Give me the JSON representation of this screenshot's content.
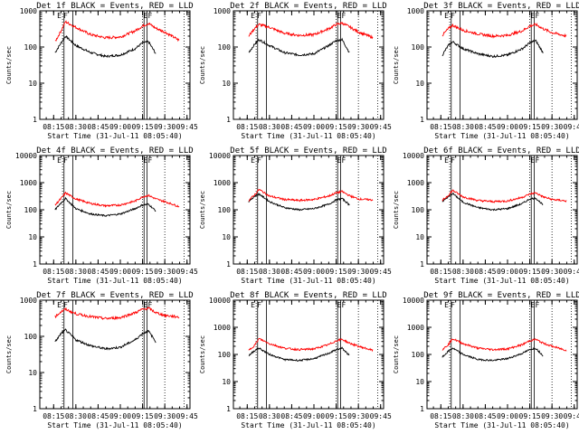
{
  "colors": {
    "events": "#000000",
    "lld": "#ff0000",
    "axes": "#000000",
    "background": "#ffffff"
  },
  "shared": {
    "xlabel": "Start Time (31-Jul-11 08:05:40)",
    "ylabel": "Counts/sec",
    "xtick_labels": [
      "08:15",
      "08:30",
      "08:45",
      "09:00",
      "09:15",
      "09:30",
      "09:45"
    ],
    "xlim": [
      "08:05:40",
      "09:47:00"
    ],
    "yscale": "log",
    "flags": [
      "E",
      "F"
    ]
  },
  "chart_data": [
    {
      "type": "line",
      "title": "Det 1f BLACK = Events, RED = LLD",
      "yticks": [
        "1",
        "10",
        "100",
        "1000"
      ],
      "ylim": [
        1,
        1000
      ],
      "series": [
        {
          "name": "Events",
          "color": "#000000",
          "x": [
            "08:16",
            "08:20",
            "08:23",
            "08:30",
            "08:40",
            "08:50",
            "09:00",
            "09:10",
            "09:15",
            "09:19",
            "09:24"
          ],
          "values": [
            70,
            130,
            200,
            110,
            70,
            55,
            60,
            90,
            130,
            140,
            65
          ]
        },
        {
          "name": "LLD",
          "color": "#ff0000",
          "x": [
            "08:16",
            "08:20",
            "08:23",
            "08:30",
            "08:40",
            "08:50",
            "09:00",
            "09:10",
            "09:15",
            "09:19",
            "09:24",
            "09:30",
            "09:40"
          ],
          "values": [
            140,
            280,
            500,
            350,
            220,
            180,
            190,
            280,
            380,
            450,
            330,
            260,
            150
          ]
        }
      ]
    },
    {
      "type": "line",
      "title": "Det 2f BLACK = Events, RED = LLD",
      "yticks": [
        "1",
        "10",
        "100",
        "1000"
      ],
      "ylim": [
        1,
        1000
      ],
      "series": [
        {
          "name": "Events",
          "color": "#000000",
          "x": [
            "08:16",
            "08:20",
            "08:23",
            "08:30",
            "08:40",
            "08:50",
            "09:00",
            "09:10",
            "09:15",
            "09:19",
            "09:24"
          ],
          "values": [
            70,
            120,
            160,
            110,
            70,
            60,
            65,
            110,
            150,
            160,
            70
          ]
        },
        {
          "name": "LLD",
          "color": "#ff0000",
          "x": [
            "08:16",
            "08:20",
            "08:23",
            "08:30",
            "08:40",
            "08:50",
            "09:00",
            "09:10",
            "09:15",
            "09:19",
            "09:24",
            "09:30",
            "09:40"
          ],
          "values": [
            200,
            330,
            420,
            350,
            240,
            210,
            220,
            320,
            420,
            460,
            360,
            260,
            180
          ]
        }
      ]
    },
    {
      "type": "line",
      "title": "Det 3f BLACK = Events, RED = LLD",
      "yticks": [
        "1",
        "10",
        "100",
        "1000"
      ],
      "ylim": [
        1,
        1000
      ],
      "series": [
        {
          "name": "Events",
          "color": "#000000",
          "x": [
            "08:16",
            "08:20",
            "08:23",
            "08:30",
            "08:40",
            "08:50",
            "09:00",
            "09:10",
            "09:15",
            "09:19",
            "09:24"
          ],
          "values": [
            60,
            110,
            140,
            90,
            65,
            55,
            60,
            90,
            130,
            150,
            70
          ]
        },
        {
          "name": "LLD",
          "color": "#ff0000",
          "x": [
            "08:16",
            "08:20",
            "08:23",
            "08:30",
            "08:40",
            "08:50",
            "09:00",
            "09:10",
            "09:15",
            "09:19",
            "09:24",
            "09:30",
            "09:40"
          ],
          "values": [
            210,
            320,
            400,
            290,
            230,
            200,
            210,
            280,
            380,
            420,
            320,
            250,
            200
          ]
        }
      ]
    },
    {
      "type": "line",
      "title": "Det 4f BLACK = Events, RED = LLD",
      "yticks": [
        "1",
        "10",
        "100",
        "1000",
        "10000"
      ],
      "ylim": [
        1,
        10000
      ],
      "series": [
        {
          "name": "Events",
          "color": "#000000",
          "x": [
            "08:16",
            "08:20",
            "08:23",
            "08:30",
            "08:40",
            "08:50",
            "09:00",
            "09:10",
            "09:15",
            "09:19",
            "09:24"
          ],
          "values": [
            100,
            180,
            260,
            110,
            70,
            60,
            70,
            110,
            150,
            160,
            90
          ]
        },
        {
          "name": "LLD",
          "color": "#ff0000",
          "x": [
            "08:16",
            "08:20",
            "08:23",
            "08:30",
            "08:40",
            "08:50",
            "09:00",
            "09:10",
            "09:15",
            "09:19",
            "09:24",
            "09:30",
            "09:40"
          ],
          "values": [
            150,
            260,
            420,
            250,
            170,
            140,
            150,
            210,
            300,
            340,
            250,
            200,
            130
          ]
        }
      ]
    },
    {
      "type": "line",
      "title": "Det 5f BLACK = Events, RED = LLD",
      "yticks": [
        "1",
        "10",
        "100",
        "1000",
        "10000"
      ],
      "ylim": [
        1,
        10000
      ],
      "series": [
        {
          "name": "Events",
          "color": "#000000",
          "x": [
            "08:16",
            "08:20",
            "08:23",
            "08:30",
            "08:40",
            "08:50",
            "09:00",
            "09:10",
            "09:15",
            "09:19",
            "09:24"
          ],
          "values": [
            200,
            320,
            380,
            200,
            120,
            100,
            110,
            160,
            230,
            260,
            150
          ]
        },
        {
          "name": "LLD",
          "color": "#ff0000",
          "x": [
            "08:16",
            "08:20",
            "08:23",
            "08:30",
            "08:40",
            "08:50",
            "09:00",
            "09:10",
            "09:15",
            "09:19",
            "09:24",
            "09:30",
            "09:40"
          ],
          "values": [
            220,
            360,
            560,
            320,
            240,
            220,
            240,
            320,
            420,
            470,
            330,
            250,
            230
          ]
        }
      ]
    },
    {
      "type": "line",
      "title": "Det 6f BLACK = Events, RED = LLD",
      "yticks": [
        "1",
        "10",
        "100",
        "1000",
        "10000"
      ],
      "ylim": [
        1,
        10000
      ],
      "series": [
        {
          "name": "Events",
          "color": "#000000",
          "x": [
            "08:16",
            "08:20",
            "08:23",
            "08:30",
            "08:40",
            "08:50",
            "09:00",
            "09:10",
            "09:15",
            "09:19",
            "09:24"
          ],
          "values": [
            200,
            300,
            400,
            190,
            120,
            100,
            110,
            170,
            250,
            270,
            150
          ]
        },
        {
          "name": "LLD",
          "color": "#ff0000",
          "x": [
            "08:16",
            "08:20",
            "08:23",
            "08:30",
            "08:40",
            "08:50",
            "09:00",
            "09:10",
            "09:15",
            "09:19",
            "09:24",
            "09:30",
            "09:40"
          ],
          "values": [
            220,
            340,
            520,
            300,
            220,
            200,
            210,
            290,
            380,
            420,
            300,
            240,
            210
          ]
        }
      ]
    },
    {
      "type": "line",
      "title": "Det 7f BLACK = Events, RED = LLD",
      "yticks": [
        "1",
        "10",
        "100",
        "1000"
      ],
      "ylim": [
        1,
        1000
      ],
      "series": [
        {
          "name": "Events",
          "color": "#000000",
          "x": [
            "08:16",
            "08:20",
            "08:23",
            "08:30",
            "08:40",
            "08:50",
            "09:00",
            "09:10",
            "09:15",
            "09:19",
            "09:24"
          ],
          "values": [
            70,
            120,
            150,
            80,
            55,
            45,
            50,
            80,
            120,
            140,
            70
          ]
        },
        {
          "name": "LLD",
          "color": "#ff0000",
          "x": [
            "08:16",
            "08:20",
            "08:23",
            "08:30",
            "08:40",
            "08:50",
            "09:00",
            "09:10",
            "09:15",
            "09:19",
            "09:24",
            "09:30",
            "09:40"
          ],
          "values": [
            350,
            480,
            560,
            420,
            350,
            310,
            330,
            450,
            560,
            600,
            450,
            380,
            340
          ]
        }
      ]
    },
    {
      "type": "line",
      "title": "Det 8f BLACK = Events, RED = LLD",
      "yticks": [
        "1",
        "10",
        "100",
        "1000",
        "10000"
      ],
      "ylim": [
        1,
        10000
      ],
      "series": [
        {
          "name": "Events",
          "color": "#000000",
          "x": [
            "08:16",
            "08:20",
            "08:23",
            "08:30",
            "08:40",
            "08:50",
            "09:00",
            "09:10",
            "09:15",
            "09:19",
            "09:24"
          ],
          "values": [
            90,
            140,
            170,
            100,
            65,
            60,
            70,
            110,
            150,
            170,
            90
          ]
        },
        {
          "name": "LLD",
          "color": "#ff0000",
          "x": [
            "08:16",
            "08:20",
            "08:23",
            "08:30",
            "08:40",
            "08:50",
            "09:00",
            "09:10",
            "09:15",
            "09:19",
            "09:24",
            "09:30",
            "09:40"
          ],
          "values": [
            140,
            220,
            380,
            250,
            170,
            150,
            160,
            230,
            320,
            360,
            260,
            200,
            140
          ]
        }
      ]
    },
    {
      "type": "line",
      "title": "Det 9f BLACK = Events, RED = LLD",
      "yticks": [
        "1",
        "10",
        "100",
        "1000",
        "10000"
      ],
      "ylim": [
        1,
        10000
      ],
      "series": [
        {
          "name": "Events",
          "color": "#000000",
          "x": [
            "08:16",
            "08:20",
            "08:23",
            "08:30",
            "08:40",
            "08:50",
            "09:00",
            "09:10",
            "09:15",
            "09:19",
            "09:24"
          ],
          "values": [
            80,
            130,
            170,
            100,
            65,
            60,
            70,
            110,
            150,
            170,
            90
          ]
        },
        {
          "name": "LLD",
          "color": "#ff0000",
          "x": [
            "08:16",
            "08:20",
            "08:23",
            "08:30",
            "08:40",
            "08:50",
            "09:00",
            "09:10",
            "09:15",
            "09:19",
            "09:24",
            "09:30",
            "09:40"
          ],
          "values": [
            150,
            230,
            380,
            250,
            170,
            150,
            160,
            230,
            320,
            360,
            260,
            200,
            140
          ]
        }
      ]
    }
  ]
}
